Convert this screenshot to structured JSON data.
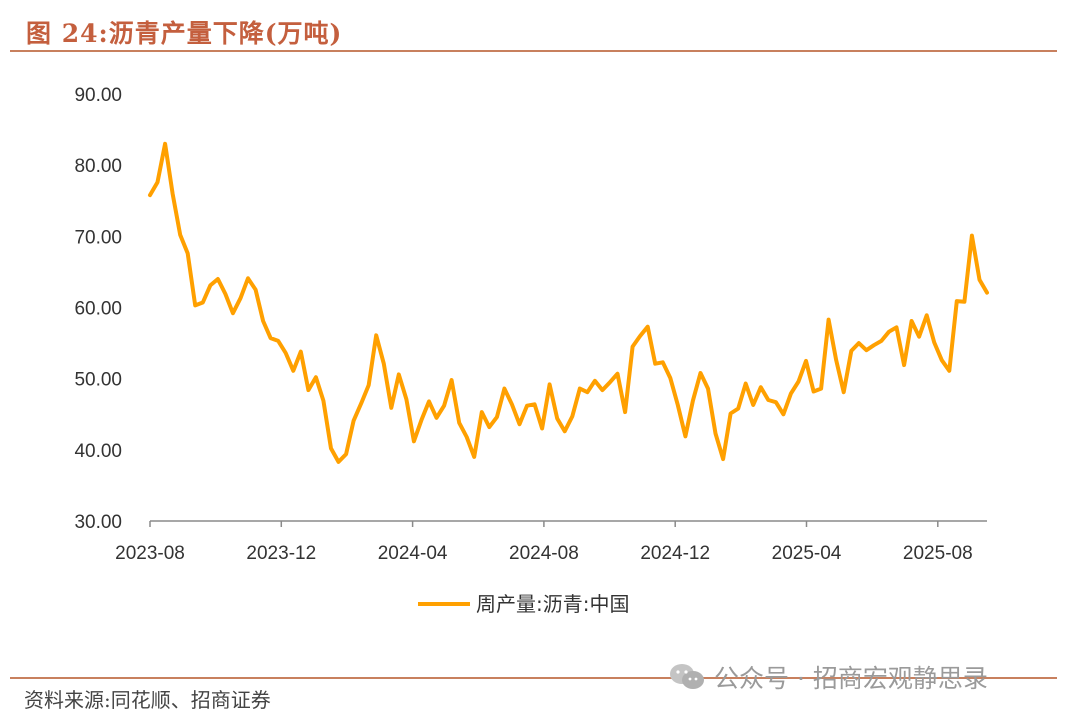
{
  "figure": {
    "title": "图 24:沥青产量下降(万吨)",
    "source": "资料来源:同花顺、招商证券",
    "watermark": "公众号 · 招商宏观静思录"
  },
  "colors": {
    "line": "#ffa000",
    "accent": "#c45f3e",
    "axis": "#8a8a8a"
  },
  "chart_data": {
    "type": "line",
    "title": "",
    "xlabel": "",
    "ylabel": "",
    "ylim": [
      30,
      90
    ],
    "yticks": [
      "30.00",
      "40.00",
      "50.00",
      "60.00",
      "70.00",
      "80.00",
      "90.00"
    ],
    "xticks": [
      "2023-08",
      "2023-12",
      "2024-04",
      "2024-08",
      "2024-12",
      "2025-04",
      "2025-08"
    ],
    "grid": false,
    "legend_position": "bottom",
    "series": [
      {
        "name": "周产量:沥青:中国",
        "values": [
          75.8,
          77.6,
          83.0,
          76.0,
          70.2,
          67.6,
          60.3,
          60.7,
          63.1,
          64.0,
          61.9,
          59.2,
          61.3,
          64.1,
          62.5,
          58.1,
          55.7,
          55.3,
          53.6,
          51.1,
          53.8,
          48.4,
          50.2,
          46.9,
          40.2,
          38.3,
          39.4,
          44.1,
          46.5,
          49.1,
          56.1,
          52.1,
          45.9,
          50.6,
          47.1,
          41.2,
          44.2,
          46.8,
          44.5,
          46.2,
          49.8,
          43.8,
          41.8,
          39.0,
          45.3,
          43.2,
          44.6,
          48.6,
          46.4,
          43.6,
          46.2,
          46.4,
          43.0,
          49.2,
          44.4,
          42.6,
          44.7,
          48.6,
          48.1,
          49.7,
          48.4,
          49.5,
          50.7,
          45.3,
          54.5,
          56.0,
          57.3,
          52.1,
          52.3,
          50.1,
          46.3,
          41.9,
          46.9,
          50.8,
          48.6,
          42.3,
          38.7,
          45.1,
          45.8,
          49.3,
          46.3,
          48.8,
          47.0,
          46.7,
          45.0,
          47.9,
          49.6,
          52.5,
          48.2,
          48.6,
          58.3,
          52.6,
          48.1,
          53.9,
          55.0,
          54.0,
          54.7,
          55.3,
          56.6,
          57.2,
          51.9,
          58.1,
          55.9,
          58.9,
          55.1,
          52.6,
          51.1,
          60.9,
          60.8,
          70.1,
          63.9,
          62.1
        ]
      }
    ]
  }
}
